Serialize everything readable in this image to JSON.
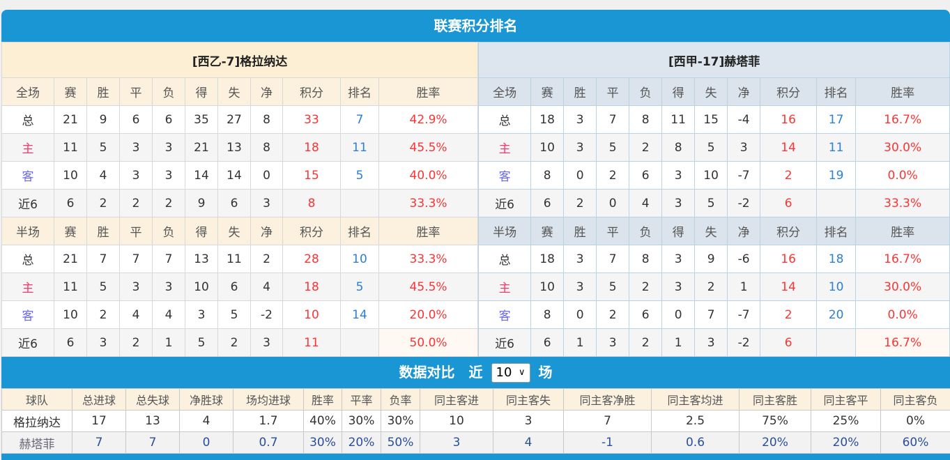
{
  "title": "联赛积分排名",
  "colors": {
    "accent": "#1b96d4",
    "points": "#ff3333",
    "rank": "#2b7fd4",
    "home": "#ff3366",
    "away": "#6666ff"
  },
  "full_headers": [
    "全场",
    "赛",
    "胜",
    "平",
    "负",
    "得",
    "失",
    "净",
    "积分",
    "排名",
    "胜率"
  ],
  "half_headers": [
    "半场",
    "赛",
    "胜",
    "平",
    "负",
    "得",
    "失",
    "净",
    "积分",
    "排名",
    "胜率"
  ],
  "left": {
    "team": "[西乙-7]格拉纳达",
    "full": [
      [
        "总",
        "21",
        "9",
        "6",
        "6",
        "35",
        "27",
        "8",
        "33",
        "7",
        "42.9%"
      ],
      [
        "主",
        "11",
        "5",
        "3",
        "3",
        "21",
        "13",
        "8",
        "18",
        "11",
        "45.5%"
      ],
      [
        "客",
        "10",
        "4",
        "3",
        "3",
        "14",
        "14",
        "0",
        "15",
        "5",
        "40.0%"
      ],
      [
        "近6",
        "6",
        "2",
        "2",
        "2",
        "9",
        "6",
        "3",
        "8",
        "",
        "33.3%"
      ]
    ],
    "half": [
      [
        "总",
        "21",
        "7",
        "7",
        "7",
        "13",
        "11",
        "2",
        "28",
        "10",
        "33.3%"
      ],
      [
        "主",
        "11",
        "5",
        "3",
        "3",
        "10",
        "6",
        "4",
        "18",
        "5",
        "45.5%"
      ],
      [
        "客",
        "10",
        "2",
        "4",
        "4",
        "3",
        "5",
        "-2",
        "10",
        "14",
        "20.0%"
      ],
      [
        "近6",
        "6",
        "3",
        "2",
        "1",
        "5",
        "2",
        "3",
        "11",
        "",
        "50.0%"
      ]
    ]
  },
  "right": {
    "team": "[西甲-17]赫塔菲",
    "full": [
      [
        "总",
        "18",
        "3",
        "7",
        "8",
        "11",
        "15",
        "-4",
        "16",
        "17",
        "16.7%"
      ],
      [
        "主",
        "10",
        "3",
        "5",
        "2",
        "8",
        "5",
        "3",
        "14",
        "11",
        "30.0%"
      ],
      [
        "客",
        "8",
        "0",
        "2",
        "6",
        "3",
        "10",
        "-7",
        "2",
        "19",
        "0.0%"
      ],
      [
        "近6",
        "6",
        "2",
        "0",
        "4",
        "3",
        "5",
        "-2",
        "6",
        "",
        "33.3%"
      ]
    ],
    "half": [
      [
        "总",
        "18",
        "3",
        "7",
        "8",
        "3",
        "9",
        "-6",
        "16",
        "18",
        "16.7%"
      ],
      [
        "主",
        "10",
        "3",
        "5",
        "2",
        "3",
        "2",
        "1",
        "14",
        "10",
        "30.0%"
      ],
      [
        "客",
        "8",
        "0",
        "2",
        "6",
        "0",
        "7",
        "-7",
        "2",
        "20",
        "0.0%"
      ],
      [
        "近6",
        "6",
        "1",
        "3",
        "2",
        "1",
        "3",
        "-2",
        "6",
        "",
        "16.7%"
      ]
    ]
  },
  "compare": {
    "title": "数据对比",
    "near_label": "近",
    "games_select": "10",
    "unit_label": "场",
    "headers": [
      "球队",
      "总进球",
      "总失球",
      "净胜球",
      "场均进球",
      "胜率",
      "平率",
      "负率",
      "同主客进",
      "同主客失",
      "同主客净胜",
      "同主客均进",
      "同主客胜",
      "同主客平",
      "同主客负"
    ],
    "rows": [
      [
        "格拉纳达",
        "17",
        "13",
        "4",
        "1.7",
        "40%",
        "30%",
        "30%",
        "10",
        "3",
        "7",
        "2.5",
        "75%",
        "25%",
        "0%"
      ],
      [
        "赫塔菲",
        "7",
        "7",
        "0",
        "0.7",
        "30%",
        "20%",
        "50%",
        "3",
        "4",
        "-1",
        "0.6",
        "20%",
        "20%",
        "60%"
      ]
    ]
  }
}
